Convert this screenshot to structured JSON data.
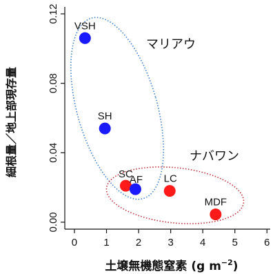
{
  "chart_data": {
    "type": "scatter",
    "xlabel": "土壌無機態窒素 (g m",
    "xlabel_sup": "−2",
    "xlabel_close": ")",
    "ylabel": "細根量／地上部現存量",
    "xlim": [
      -0.3,
      6.1
    ],
    "ylim": [
      -0.004,
      0.124
    ],
    "xticks": [
      0,
      1,
      2,
      3,
      4,
      5,
      6
    ],
    "xtick_labels": [
      "0",
      "1",
      "2",
      "3",
      "4",
      "5",
      "6"
    ],
    "yticks": [
      0.0,
      0.04,
      0.08,
      0.12
    ],
    "ytick_labels": [
      "0.00",
      "0.04",
      "0.08",
      "0.12"
    ],
    "grid": false,
    "points": [
      {
        "label": "VSH",
        "x": 0.33,
        "y": 0.106,
        "color": "#1a1aff"
      },
      {
        "label": "SH",
        "x": 0.95,
        "y": 0.054,
        "color": "#1a1aff"
      },
      {
        "label": "SC",
        "x": 1.6,
        "y": 0.021,
        "color": "#ff1a1a"
      },
      {
        "label": "AF",
        "x": 1.9,
        "y": 0.019,
        "color": "#1a1aff"
      },
      {
        "label": "LC",
        "x": 2.97,
        "y": 0.018,
        "color": "#ff1a1a"
      },
      {
        "label": "MDF",
        "x": 4.4,
        "y": 0.0045,
        "color": "#ff1a1a"
      }
    ],
    "groups": [
      {
        "name": "マリアウ",
        "color": "#3a7fd0",
        "members": [
          "VSH",
          "SH",
          "AF"
        ]
      },
      {
        "name": "ナバワン",
        "color": "#c0303a",
        "members": [
          "SC",
          "LC",
          "MDF"
        ]
      }
    ]
  }
}
